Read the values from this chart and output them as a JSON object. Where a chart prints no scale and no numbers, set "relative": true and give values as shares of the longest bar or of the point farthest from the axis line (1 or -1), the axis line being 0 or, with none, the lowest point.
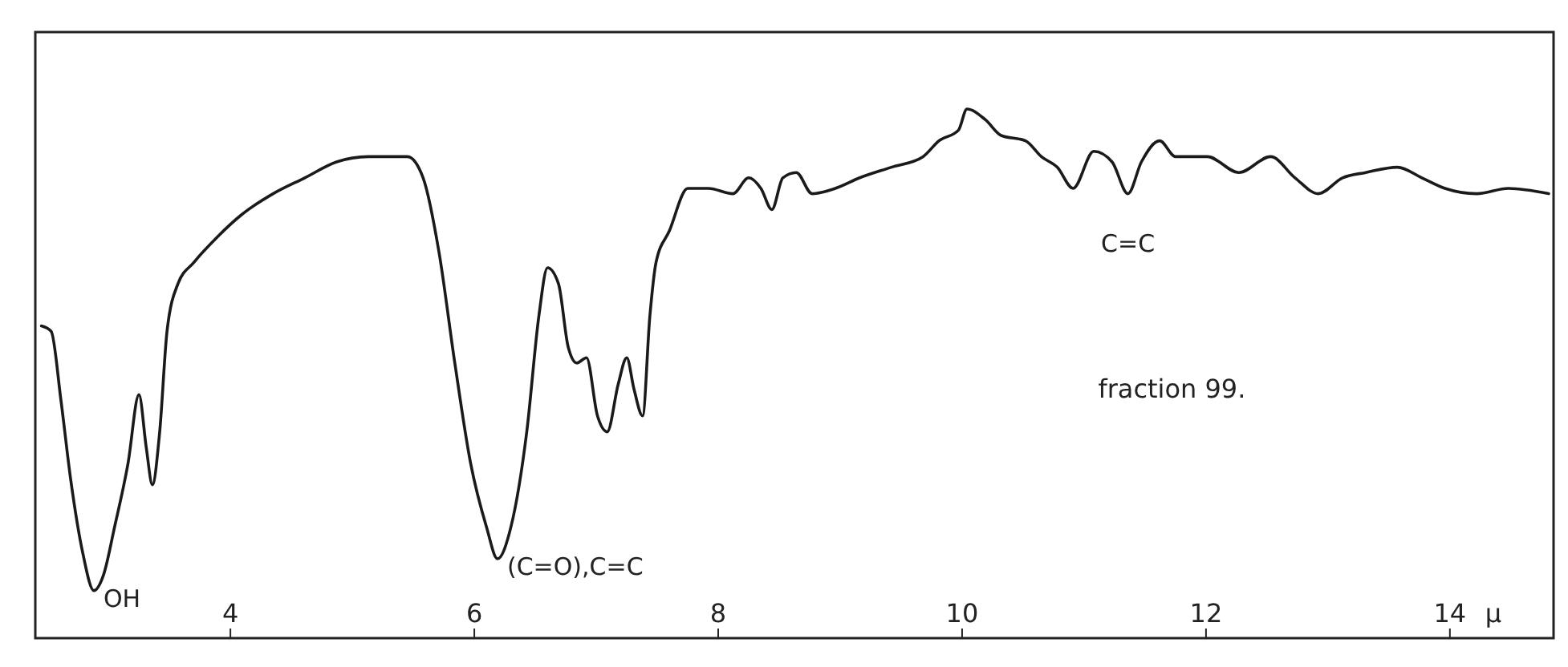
{
  "chart_data": {
    "type": "line",
    "relative": true,
    "xlabel": "μ",
    "xlim": [
      2.4,
      14.85
    ],
    "xticks": [
      4,
      6,
      8,
      10,
      12,
      14
    ],
    "grid": false,
    "marker": "none",
    "line_style": "solid",
    "series": [
      {
        "color": "#1a1a1a",
        "x": [
          2.45,
          2.53,
          2.61,
          2.69,
          2.79,
          2.88,
          2.96,
          3.05,
          3.16,
          3.25,
          3.31,
          3.36,
          3.42,
          3.48,
          3.57,
          3.7,
          3.9,
          4.09,
          4.35,
          4.61,
          4.87,
          5.13,
          5.45,
          5.58,
          5.71,
          5.84,
          5.97,
          6.1,
          6.19,
          6.3,
          6.43,
          6.53,
          6.6,
          6.69,
          6.77,
          6.84,
          6.92,
          7.01,
          7.09,
          7.18,
          7.25,
          7.31,
          7.38,
          7.44,
          7.49,
          7.6,
          7.75,
          7.92,
          8.12,
          8.25,
          8.35,
          8.44,
          8.53,
          8.64,
          8.77,
          8.96,
          9.16,
          9.42,
          9.68,
          9.81,
          9.97,
          10.04,
          10.19,
          10.32,
          10.52,
          10.65,
          10.78,
          10.91,
          11.08,
          11.23,
          11.36,
          11.47,
          11.62,
          11.75,
          12.01,
          12.27,
          12.53,
          12.73,
          12.92,
          13.12,
          13.31,
          13.57,
          13.77,
          13.96,
          14.22,
          14.48,
          14.81
        ],
        "values": [
          0.59,
          0.58,
          0.45,
          0.3,
          0.16,
          0.09,
          0.12,
          0.21,
          0.33,
          0.46,
          0.36,
          0.29,
          0.39,
          0.58,
          0.67,
          0.71,
          0.76,
          0.8,
          0.84,
          0.87,
          0.9,
          0.91,
          0.91,
          0.87,
          0.73,
          0.52,
          0.33,
          0.21,
          0.15,
          0.21,
          0.39,
          0.61,
          0.7,
          0.67,
          0.55,
          0.52,
          0.53,
          0.42,
          0.39,
          0.48,
          0.53,
          0.47,
          0.42,
          0.61,
          0.71,
          0.77,
          0.85,
          0.85,
          0.84,
          0.87,
          0.85,
          0.81,
          0.87,
          0.88,
          0.84,
          0.85,
          0.87,
          0.89,
          0.91,
          0.94,
          0.96,
          1,
          0.98,
          0.95,
          0.94,
          0.91,
          0.89,
          0.85,
          0.92,
          0.9,
          0.84,
          0.9,
          0.94,
          0.91,
          0.91,
          0.88,
          0.91,
          0.87,
          0.84,
          0.87,
          0.88,
          0.89,
          0.87,
          0.85,
          0.84,
          0.85,
          0.84
        ]
      }
    ],
    "annotations": [
      {
        "text": "OH",
        "x": 2.88,
        "y": 0.09
      },
      {
        "text": "(C=O),C=C",
        "x": 6.19,
        "y": 0.15
      },
      {
        "text": "C=C",
        "x": 11.36,
        "y": 0.84
      },
      "fraction 99."
    ]
  }
}
